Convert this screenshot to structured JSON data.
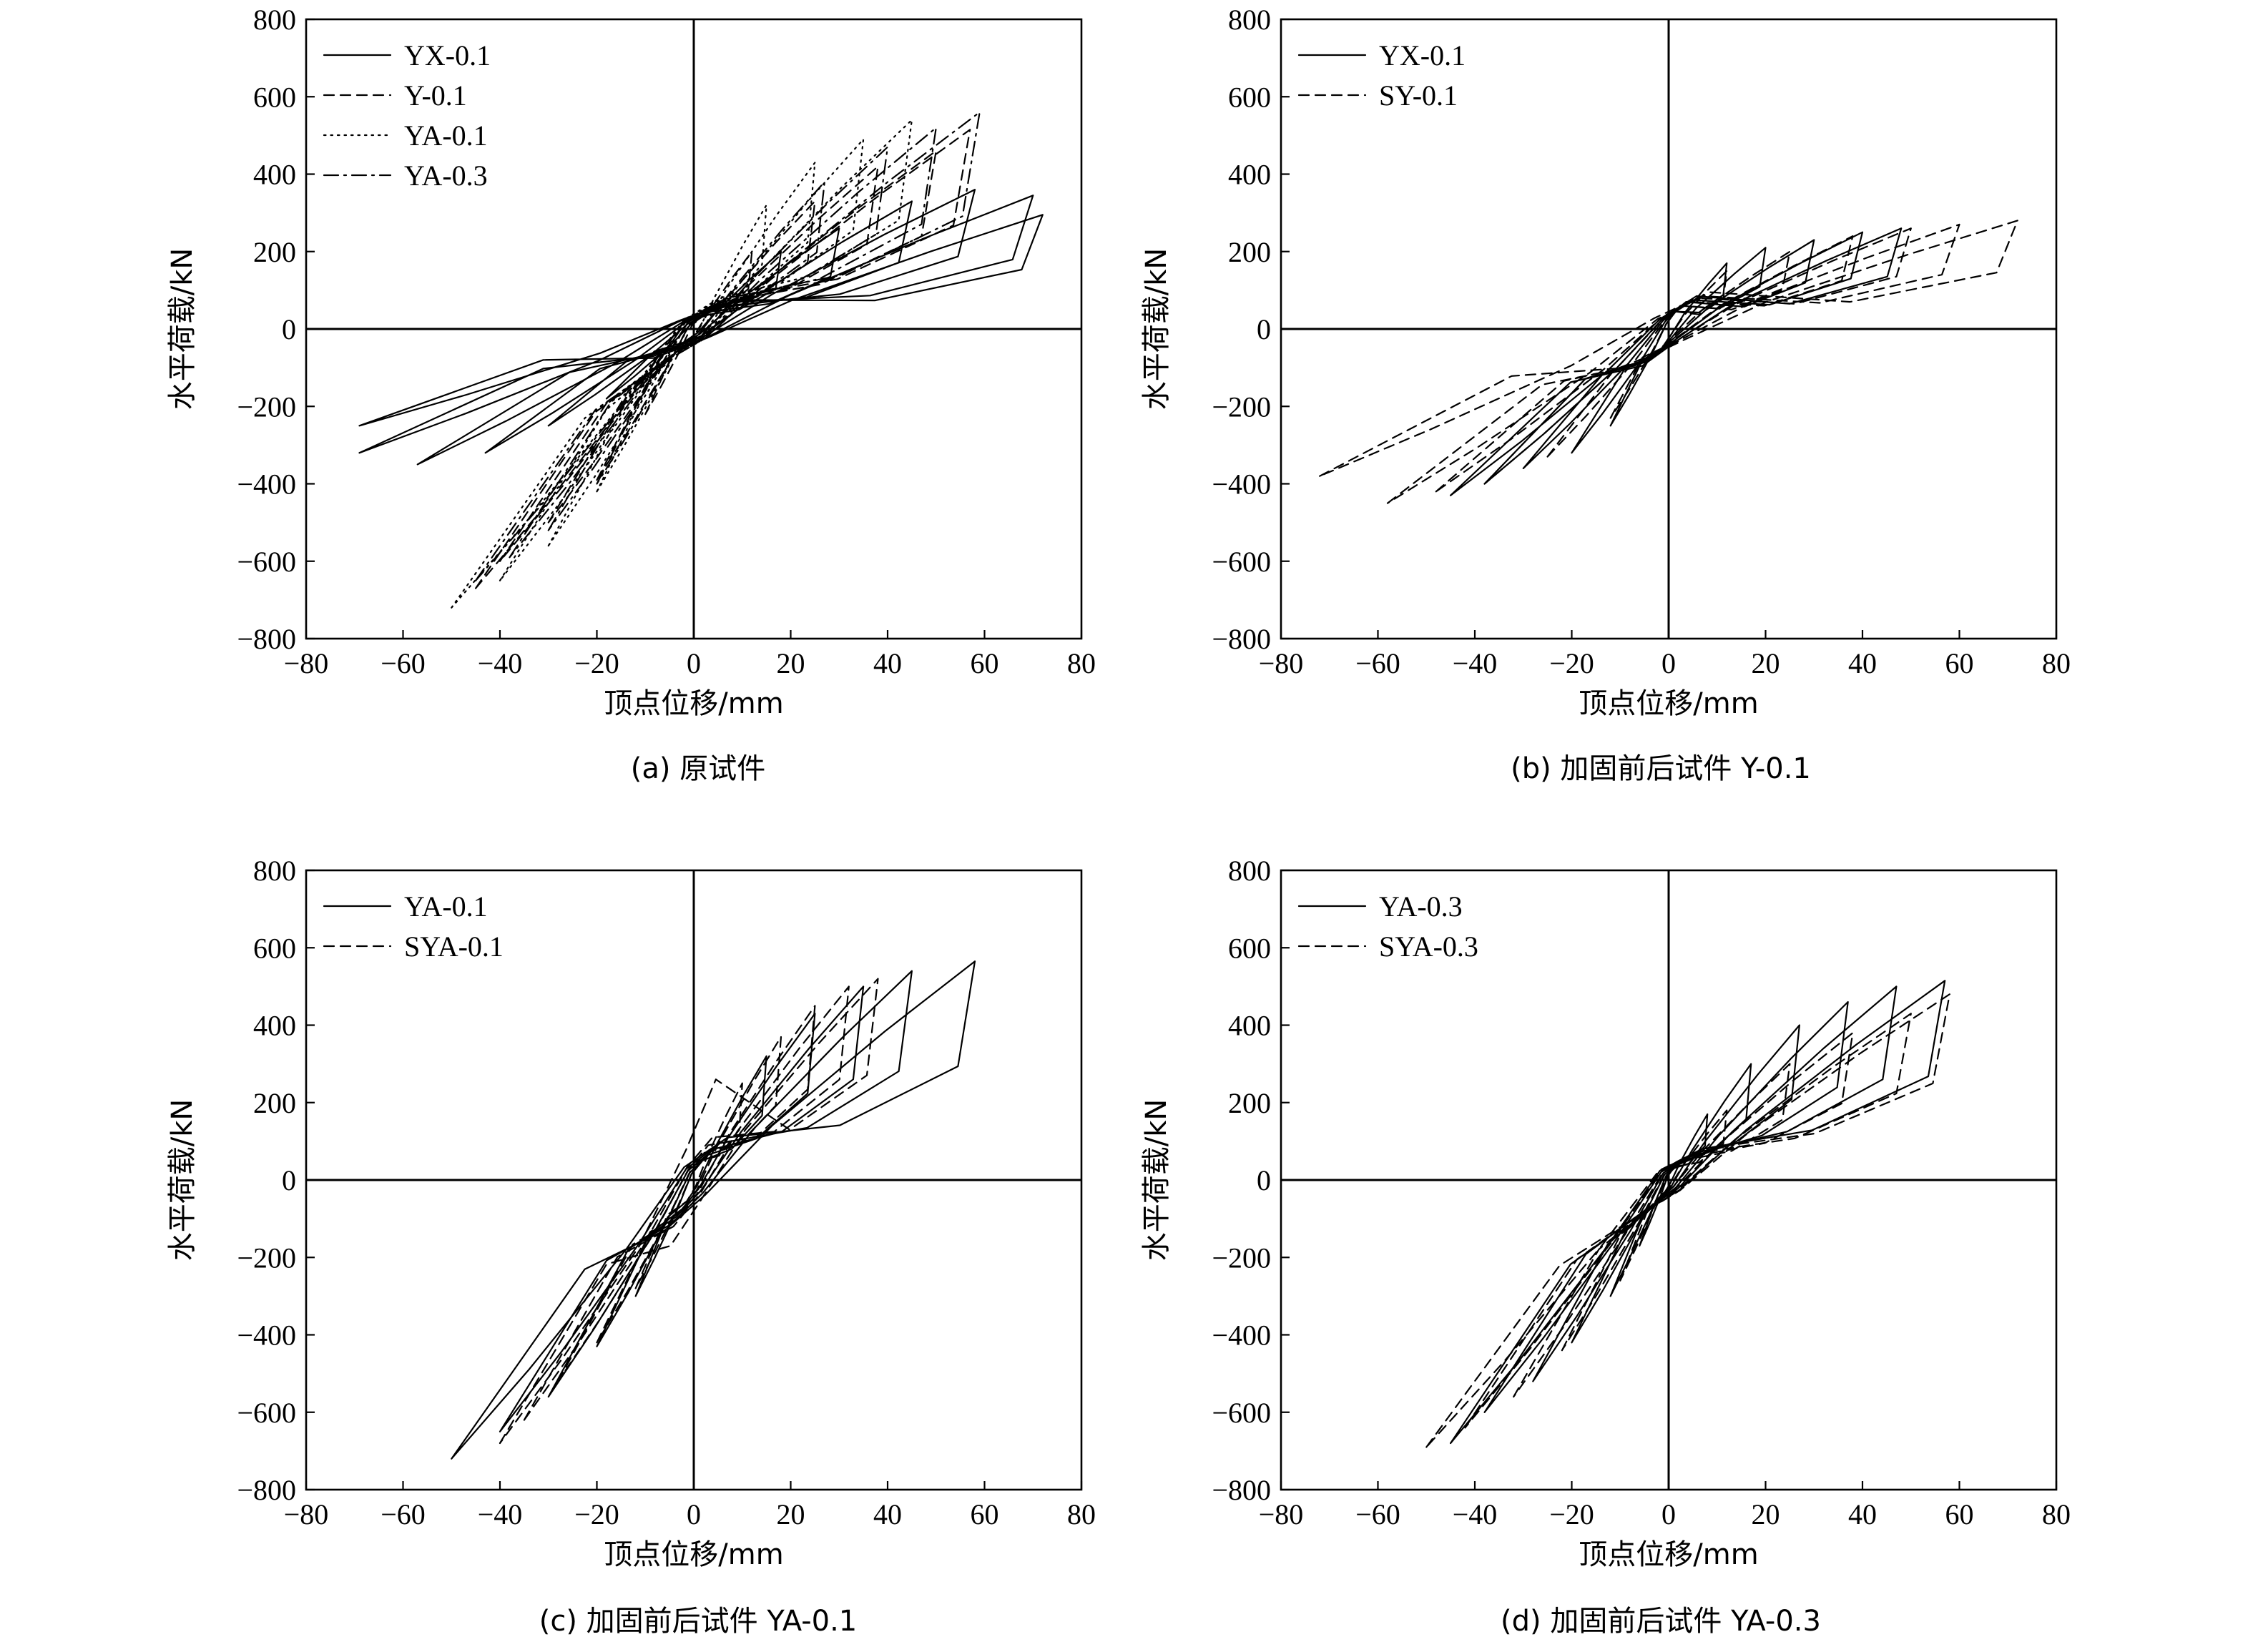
{
  "chart_data": [
    {
      "type": "line",
      "caption": "(a) 原试件",
      "xlabel": "顶点位移/mm",
      "ylabel": "水平荷载/kN",
      "xlim": [
        -80,
        80
      ],
      "ylim": [
        -800,
        800
      ],
      "xticks": [
        "−80",
        "−60",
        "−40",
        "−20",
        "0",
        "20",
        "40",
        "60",
        "80"
      ],
      "yticks": [
        "800",
        "600",
        "400",
        "200",
        "0",
        "−200",
        "−400",
        "−600",
        "−800"
      ],
      "legend_position": "top-left",
      "grid": false,
      "series": [
        {
          "name": "YX-0.1",
          "style": "solid",
          "loops": [
            {
              "pos": [
                72,
                295
              ],
              "neg": [
                -69,
                -250
              ],
              "p0": 75,
              "n0": -75
            },
            {
              "pos": [
                70,
                345
              ],
              "neg": [
                -69,
                -320
              ],
              "p0": 70,
              "n0": -70
            },
            {
              "pos": [
                58,
                360
              ],
              "neg": [
                -57,
                -350
              ],
              "p0": 60,
              "n0": -60
            },
            {
              "pos": [
                45,
                330
              ],
              "neg": [
                -43,
                -320
              ],
              "p0": 55,
              "n0": -55
            },
            {
              "pos": [
                30,
                260
              ],
              "neg": [
                -30,
                -250
              ],
              "p0": 45,
              "n0": -45
            },
            {
              "pos": [
                18,
                200
              ],
              "neg": [
                -18,
                -180
              ],
              "p0": 35,
              "n0": -35
            }
          ]
        },
        {
          "name": "Y-0.1",
          "style": "dashed",
          "loops": [
            {
              "pos": [
                57,
                515
              ],
              "neg": [
                -45,
                -670
              ],
              "p0": 80,
              "n0": -80
            },
            {
              "pos": [
                50,
                460
              ],
              "neg": [
                -40,
                -600
              ],
              "p0": 70,
              "n0": -70
            },
            {
              "pos": [
                38,
                420
              ],
              "neg": [
                -30,
                -500
              ],
              "p0": 60,
              "n0": -60
            },
            {
              "pos": [
                25,
                330
              ],
              "neg": [
                -20,
                -390
              ],
              "p0": 45,
              "n0": -45
            },
            {
              "pos": [
                12,
                200
              ],
              "neg": [
                -10,
                -220
              ],
              "p0": 30,
              "n0": -30
            }
          ]
        },
        {
          "name": "YA-0.1",
          "style": "dotted",
          "loops": [
            {
              "pos": [
                45,
                540
              ],
              "neg": [
                -50,
                -720
              ],
              "p0": 80,
              "n0": -80
            },
            {
              "pos": [
                35,
                490
              ],
              "neg": [
                -40,
                -650
              ],
              "p0": 70,
              "n0": -70
            },
            {
              "pos": [
                25,
                430
              ],
              "neg": [
                -30,
                -560
              ],
              "p0": 60,
              "n0": -60
            },
            {
              "pos": [
                15,
                320
              ],
              "neg": [
                -20,
                -420
              ],
              "p0": 45,
              "n0": -45
            }
          ]
        },
        {
          "name": "YA-0.3",
          "style": "dashdot",
          "loops": [
            {
              "pos": [
                59,
                560
              ],
              "neg": [
                -45,
                -650
              ],
              "p0": 80,
              "n0": -80
            },
            {
              "pos": [
                50,
                520
              ],
              "neg": [
                -38,
                -590
              ],
              "p0": 70,
              "n0": -70
            },
            {
              "pos": [
                40,
                470
              ],
              "neg": [
                -30,
                -520
              ],
              "p0": 60,
              "n0": -60
            },
            {
              "pos": [
                27,
                380
              ],
              "neg": [
                -20,
                -400
              ],
              "p0": 45,
              "n0": -45
            }
          ]
        }
      ]
    },
    {
      "type": "line",
      "caption": "(b) 加固前后试件 Y-0.1",
      "xlabel": "顶点位移/mm",
      "ylabel": "水平荷载/kN",
      "xlim": [
        -80,
        80
      ],
      "ylim": [
        -800,
        800
      ],
      "xticks": [
        "−80",
        "−60",
        "−40",
        "−20",
        "0",
        "20",
        "40",
        "60",
        "80"
      ],
      "yticks": [
        "800",
        "600",
        "400",
        "200",
        "0",
        "−200",
        "−400",
        "−600",
        "−800"
      ],
      "legend_position": "top-left",
      "grid": false,
      "series": [
        {
          "name": "YX-0.1",
          "style": "solid",
          "loops": [
            {
              "pos": [
                48,
                260
              ],
              "neg": [
                -45,
                -430
              ],
              "p0": 85,
              "n0": -95
            },
            {
              "pos": [
                40,
                250
              ],
              "neg": [
                -38,
                -400
              ],
              "p0": 75,
              "n0": -85
            },
            {
              "pos": [
                30,
                230
              ],
              "neg": [
                -30,
                -360
              ],
              "p0": 70,
              "n0": -75
            },
            {
              "pos": [
                20,
                210
              ],
              "neg": [
                -20,
                -320
              ],
              "p0": 60,
              "n0": -65
            },
            {
              "pos": [
                12,
                170
              ],
              "neg": [
                -12,
                -250
              ],
              "p0": 45,
              "n0": -50
            }
          ]
        },
        {
          "name": "SY-0.1",
          "style": "dashed",
          "loops": [
            {
              "pos": [
                72,
                280
              ],
              "neg": [
                -72,
                -380
              ],
              "p0": 95,
              "n0": -100
            },
            {
              "pos": [
                60,
                270
              ],
              "neg": [
                -58,
                -450
              ],
              "p0": 85,
              "n0": -95
            },
            {
              "pos": [
                50,
                260
              ],
              "neg": [
                -48,
                -420
              ],
              "p0": 80,
              "n0": -90
            },
            {
              "pos": [
                38,
                240
              ],
              "neg": [
                -38,
                -400
              ],
              "p0": 70,
              "n0": -80
            },
            {
              "pos": [
                25,
                200
              ],
              "neg": [
                -25,
                -330
              ],
              "p0": 60,
              "n0": -65
            },
            {
              "pos": [
                12,
                150
              ],
              "neg": [
                -12,
                -230
              ],
              "p0": 45,
              "n0": -50
            }
          ]
        }
      ]
    },
    {
      "type": "line",
      "caption": "(c) 加固前后试件 YA-0.1",
      "xlabel": "顶点位移/mm",
      "ylabel": "水平荷载/kN",
      "xlim": [
        -80,
        80
      ],
      "ylim": [
        -800,
        800
      ],
      "xticks": [
        "−80",
        "−60",
        "−40",
        "−20",
        "0",
        "20",
        "40",
        "60",
        "80"
      ],
      "yticks": [
        "800",
        "600",
        "400",
        "200",
        "0",
        "−200",
        "−400",
        "−600",
        "−800"
      ],
      "legend_position": "top-left",
      "grid": false,
      "series": [
        {
          "name": "YA-0.1",
          "style": "solid",
          "loops": [
            {
              "pos": [
                58,
                565
              ],
              "neg": [
                -50,
                -720
              ],
              "p0": 110,
              "n0": -130
            },
            {
              "pos": [
                45,
                540
              ],
              "neg": [
                -40,
                -650
              ],
              "p0": 95,
              "n0": -115
            },
            {
              "pos": [
                35,
                500
              ],
              "neg": [
                -30,
                -560
              ],
              "p0": 80,
              "n0": -95
            },
            {
              "pos": [
                25,
                430
              ],
              "neg": [
                -20,
                -430
              ],
              "p0": 65,
              "n0": -75
            },
            {
              "pos": [
                15,
                320
              ],
              "neg": [
                -12,
                -300
              ],
              "p0": 50,
              "n0": -55
            }
          ]
        },
        {
          "name": "SYA-0.1",
          "style": "dashed",
          "loops": [
            {
              "pos": [
                38,
                520
              ],
              "neg": [
                -40,
                -680
              ],
              "p0": 260,
              "n0": -170
            },
            {
              "pos": [
                32,
                500
              ],
              "neg": [
                -35,
                -620
              ],
              "p0": 110,
              "n0": -120
            },
            {
              "pos": [
                25,
                450
              ],
              "neg": [
                -28,
                -520
              ],
              "p0": 90,
              "n0": -100
            },
            {
              "pos": [
                18,
                370
              ],
              "neg": [
                -20,
                -420
              ],
              "p0": 70,
              "n0": -80
            },
            {
              "pos": [
                10,
                250
              ],
              "neg": [
                -12,
                -280
              ],
              "p0": 50,
              "n0": -55
            }
          ]
        }
      ]
    },
    {
      "type": "line",
      "caption": "(d) 加固前后试件 YA-0.3",
      "xlabel": "顶点位移/mm",
      "ylabel": "水平荷载/kN",
      "xlim": [
        -80,
        80
      ],
      "ylim": [
        -800,
        800
      ],
      "xticks": [
        "−80",
        "−60",
        "−40",
        "−20",
        "0",
        "20",
        "40",
        "60",
        "80"
      ],
      "yticks": [
        "800",
        "600",
        "400",
        "200",
        "0",
        "−200",
        "−400",
        "−600",
        "−800"
      ],
      "legend_position": "top-left",
      "grid": false,
      "series": [
        {
          "name": "YA-0.3",
          "style": "solid",
          "loops": [
            {
              "pos": [
                57,
                515
              ],
              "neg": [
                -45,
                -680
              ],
              "p0": 80,
              "n0": -85
            },
            {
              "pos": [
                47,
                500
              ],
              "neg": [
                -38,
                -600
              ],
              "p0": 70,
              "n0": -75
            },
            {
              "pos": [
                37,
                460
              ],
              "neg": [
                -28,
                -520
              ],
              "p0": 60,
              "n0": -65
            },
            {
              "pos": [
                27,
                400
              ],
              "neg": [
                -20,
                -420
              ],
              "p0": 50,
              "n0": -55
            },
            {
              "pos": [
                17,
                300
              ],
              "neg": [
                -12,
                -300
              ],
              "p0": 40,
              "n0": -45
            },
            {
              "pos": [
                8,
                170
              ],
              "neg": [
                -6,
                -170
              ],
              "p0": 30,
              "n0": -30
            }
          ]
        },
        {
          "name": "SYA-0.3",
          "style": "dashed",
          "loops": [
            {
              "pos": [
                58,
                480
              ],
              "neg": [
                -50,
                -690
              ],
              "p0": 80,
              "n0": -90
            },
            {
              "pos": [
                50,
                430
              ],
              "neg": [
                -42,
                -640
              ],
              "p0": 70,
              "n0": -80
            },
            {
              "pos": [
                38,
                380
              ],
              "neg": [
                -32,
                -560
              ],
              "p0": 60,
              "n0": -70
            },
            {
              "pos": [
                25,
                300
              ],
              "neg": [
                -22,
                -440
              ],
              "p0": 50,
              "n0": -55
            },
            {
              "pos": [
                12,
                180
              ],
              "neg": [
                -10,
                -260
              ],
              "p0": 35,
              "n0": -40
            }
          ]
        }
      ]
    }
  ]
}
